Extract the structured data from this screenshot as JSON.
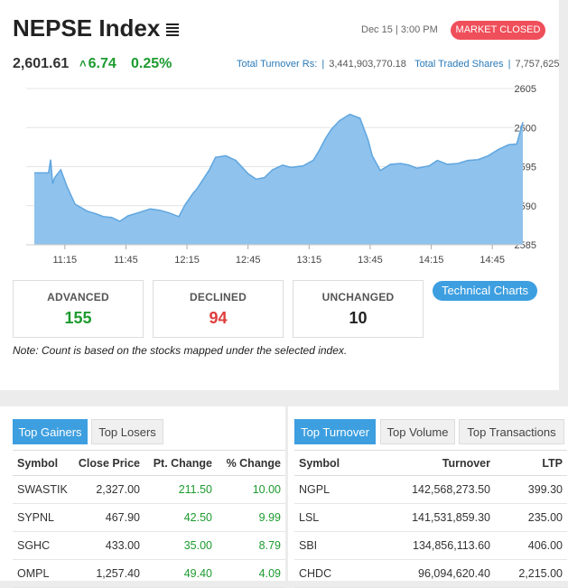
{
  "header": {
    "title": "NEPSE Index",
    "datetime": "Dec 15 | 3:00 PM",
    "market_status": "MARKET CLOSED",
    "index_value": "2,601.61",
    "change": "6.74",
    "change_pct": "0.25%",
    "turnover_label": "Total Turnover Rs:",
    "turnover_value": "3,441,903,770.18",
    "shares_label": "Total Traded Shares",
    "shares_value": "7,757,625"
  },
  "chart_data": {
    "type": "area",
    "x_ticks": [
      "11:15",
      "11:45",
      "12:15",
      "12:45",
      "13:15",
      "13:45",
      "14:15",
      "14:45"
    ],
    "y_ticks": [
      2605,
      2600,
      2595,
      2590,
      2585
    ],
    "ylim": [
      2585,
      2605
    ],
    "x_domain": [
      "10:56",
      "15:00"
    ],
    "color": "#8fc2ec",
    "line_color": "#5fa6e0",
    "series": [
      {
        "x": [
          "11:00",
          "11:07",
          "11:08",
          "11:09",
          "11:10",
          "11:13",
          "11:16",
          "11:20",
          "11:26",
          "11:30",
          "11:34",
          "11:38",
          "11:42",
          "11:46",
          "11:51",
          "11:57",
          "12:02",
          "12:06",
          "12:11",
          "12:14",
          "12:18",
          "12:20",
          "12:26",
          "12:29",
          "12:34",
          "12:39",
          "12:45",
          "12:49",
          "12:53",
          "12:57",
          "13:02",
          "13:06",
          "13:12",
          "13:17",
          "13:20",
          "13:23",
          "13:26",
          "13:30",
          "13:35",
          "13:40",
          "13:44",
          "13:46",
          "13:50",
          "13:55",
          "14:00",
          "14:04",
          "14:08",
          "14:14",
          "14:18",
          "14:23",
          "14:28",
          "14:33",
          "14:38",
          "14:43",
          "14:48",
          "14:53",
          "14:57",
          "15:00"
        ],
        "values": [
          2594.2,
          2594.2,
          2595.9,
          2592.8,
          2593.6,
          2594.6,
          2592.5,
          2590.2,
          2589.3,
          2589.0,
          2588.6,
          2588.5,
          2588.0,
          2588.7,
          2589.1,
          2589.6,
          2589.4,
          2589.1,
          2588.6,
          2590.1,
          2591.6,
          2592.2,
          2594.6,
          2596.2,
          2596.4,
          2595.8,
          2594.1,
          2593.4,
          2593.6,
          2594.6,
          2595.2,
          2594.9,
          2595.1,
          2595.8,
          2597.1,
          2598.6,
          2599.8,
          2600.9,
          2601.7,
          2601.2,
          2598.4,
          2596.4,
          2594.5,
          2595.3,
          2595.4,
          2595.2,
          2594.8,
          2595.1,
          2595.8,
          2595.3,
          2595.4,
          2595.8,
          2595.9,
          2596.4,
          2597.2,
          2597.8,
          2597.9,
          2600.7
        ]
      }
    ]
  },
  "counts": {
    "advanced_label": "ADVANCED",
    "advanced": "155",
    "declined_label": "DECLINED",
    "declined": "94",
    "unchanged_label": "UNCHANGED",
    "unchanged": "10"
  },
  "tech_charts_label": "Technical Charts",
  "note": "Note: Count is based on the stocks mapped under the selected index.",
  "gainers": {
    "tabs": [
      "Top Gainers",
      "Top Losers"
    ],
    "headers": [
      "Symbol",
      "Close Price",
      "Pt. Change",
      "% Change"
    ],
    "rows": [
      [
        "SWASTIK",
        "2,327.00",
        "211.50",
        "10.00"
      ],
      [
        "SYPNL",
        "467.90",
        "42.50",
        "9.99"
      ],
      [
        "SGHC",
        "433.00",
        "35.00",
        "8.79"
      ],
      [
        "OMPL",
        "1,257.40",
        "49.40",
        "4.09"
      ]
    ]
  },
  "turnover": {
    "tabs": [
      "Top Turnover",
      "Top Volume",
      "Top Transactions"
    ],
    "headers": [
      "Symbol",
      "Turnover",
      "LTP"
    ],
    "rows": [
      [
        "NGPL",
        "142,568,273.50",
        "399.30"
      ],
      [
        "LSL",
        "141,531,859.30",
        "235.00"
      ],
      [
        "SBI",
        "134,856,113.60",
        "406.00"
      ],
      [
        "CHDC",
        "96,094,620.40",
        "2,215.00"
      ]
    ]
  }
}
